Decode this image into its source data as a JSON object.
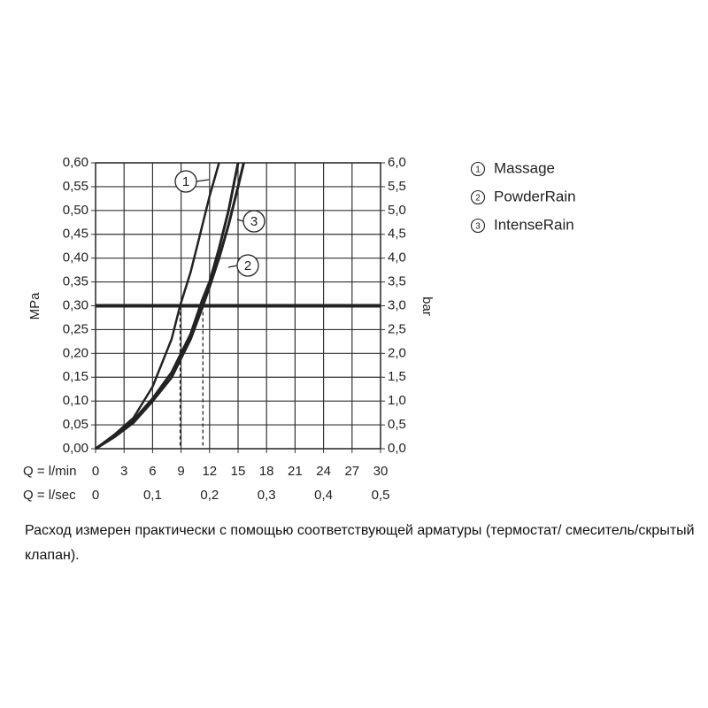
{
  "chart_data": {
    "type": "line",
    "x_label": "Q = l/min",
    "x2_label": "Q = l/sec",
    "y_label": "MPa",
    "y2_label": "bar",
    "xlim": [
      0,
      30
    ],
    "xticks": [
      0,
      3,
      6,
      9,
      12,
      15,
      18,
      21,
      24,
      27,
      30
    ],
    "x2lim": [
      0,
      0.5
    ],
    "x2ticks": [
      0,
      {
        "value": 0.1,
        "label": "0,1"
      },
      {
        "value": 0.2,
        "label": "0,2"
      },
      {
        "value": 0.3,
        "label": "0,3"
      },
      {
        "value": 0.4,
        "label": "0,4"
      },
      {
        "value": 0.5,
        "label": "0,5"
      }
    ],
    "ylim": [
      0,
      0.6
    ],
    "yticks": [
      {
        "value": 0,
        "label": "0,00"
      },
      {
        "value": 0.05,
        "label": "0,05"
      },
      {
        "value": 0.1,
        "label": "0,10"
      },
      {
        "value": 0.15,
        "label": "0,15"
      },
      {
        "value": 0.2,
        "label": "0,20"
      },
      {
        "value": 0.25,
        "label": "0,25"
      },
      {
        "value": 0.3,
        "label": "0,30"
      },
      {
        "value": 0.35,
        "label": "0,35"
      },
      {
        "value": 0.4,
        "label": "0,40"
      },
      {
        "value": 0.45,
        "label": "0,45"
      },
      {
        "value": 0.5,
        "label": "0,50"
      },
      {
        "value": 0.55,
        "label": "0,55"
      },
      {
        "value": 0.6,
        "label": "0,60"
      }
    ],
    "y2lim": [
      0,
      6
    ],
    "y2ticks": [
      {
        "value": 0,
        "label": "0,0"
      },
      {
        "value": 0.5,
        "label": "0,5"
      },
      {
        "value": 1,
        "label": "1,0"
      },
      {
        "value": 1.5,
        "label": "1,5"
      },
      {
        "value": 2,
        "label": "2,0"
      },
      {
        "value": 2.5,
        "label": "2,5"
      },
      {
        "value": 3,
        "label": "3,0"
      },
      {
        "value": 3.5,
        "label": "3,5"
      },
      {
        "value": 4,
        "label": "4,0"
      },
      {
        "value": 4.5,
        "label": "4,5"
      },
      {
        "value": 5,
        "label": "5,0"
      },
      {
        "value": 5.5,
        "label": "5,5"
      },
      {
        "value": 6,
        "label": "6,0"
      }
    ],
    "grid": true,
    "reference_y": 0.3,
    "reference_x": [
      8.9,
      11.3
    ],
    "series": [
      {
        "name": "Massage",
        "number": "1",
        "color": "#222222",
        "x": [
          0,
          2,
          4,
          6,
          8,
          8.9,
          10,
          11,
          12,
          13
        ],
        "values": [
          0,
          0.03,
          0.065,
          0.13,
          0.23,
          0.3,
          0.37,
          0.45,
          0.53,
          0.6
        ]
      },
      {
        "name": "PowderRain",
        "number": "2",
        "color": "#222222",
        "x": [
          0,
          2,
          4,
          6,
          8,
          10,
          11.3,
          12,
          13,
          14,
          15,
          15.6
        ],
        "values": [
          0,
          0.025,
          0.055,
          0.1,
          0.15,
          0.23,
          0.3,
          0.34,
          0.4,
          0.47,
          0.55,
          0.6
        ]
      },
      {
        "name": "IntenseRain",
        "number": "3",
        "color": "#222222",
        "x": [
          0,
          2,
          4,
          6,
          8,
          10,
          11.2,
          12,
          13,
          14,
          15
        ],
        "values": [
          0,
          0.027,
          0.06,
          0.105,
          0.16,
          0.24,
          0.31,
          0.35,
          0.42,
          0.5,
          0.6
        ]
      }
    ],
    "caption": "Расход измерен практически с помощью соответствующей арматуры (термостат/ смеситель/скрытый клапан)."
  }
}
